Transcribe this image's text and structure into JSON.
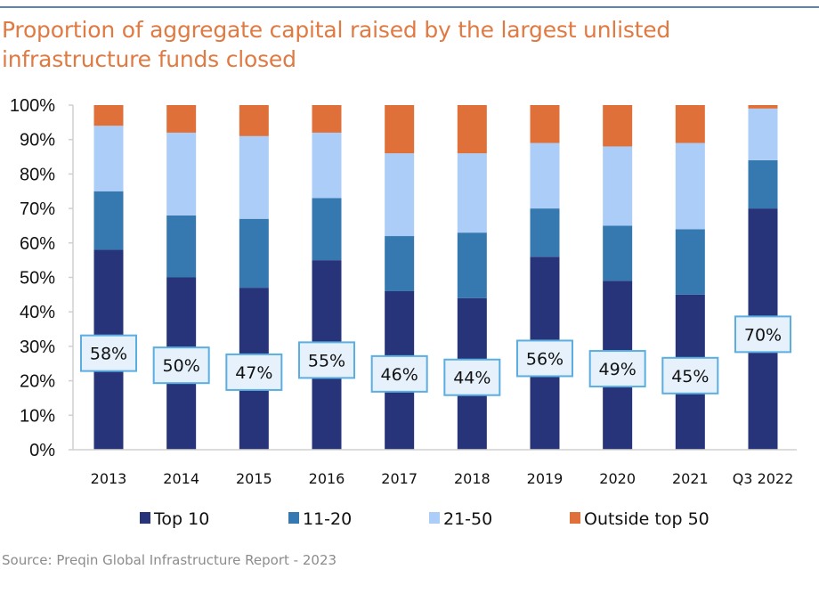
{
  "title": "Proportion of aggregate capital raised by the largest unlisted infrastructure funds closed",
  "source": "Source: Preqin Global Infrastructure Report - 2023",
  "colors": {
    "title": "#e07a43",
    "top_rule": "#5b87b0",
    "label_box_fill": "#e6f1fb",
    "label_box_border": "#5aaee0"
  },
  "chart_data": {
    "type": "bar",
    "stacked": true,
    "title": "Proportion of aggregate capital raised by the largest unlisted infrastructure funds closed",
    "xlabel": "",
    "ylabel": "",
    "ylim": [
      0,
      100
    ],
    "yticks": [
      0,
      10,
      20,
      30,
      40,
      50,
      60,
      70,
      80,
      90,
      100
    ],
    "ytick_labels": [
      "0%",
      "10%",
      "20%",
      "30%",
      "40%",
      "50%",
      "60%",
      "70%",
      "80%",
      "90%",
      "100%"
    ],
    "grid": false,
    "legend_position": "bottom",
    "categories": [
      "2013",
      "2014",
      "2015",
      "2016",
      "2017",
      "2018",
      "2019",
      "2020",
      "2021",
      "Q3 2022"
    ],
    "series": [
      {
        "name": "Top 10",
        "color": "#27347a",
        "values": [
          58,
          50,
          47,
          55,
          46,
          44,
          56,
          49,
          45,
          70
        ]
      },
      {
        "name": "11-20",
        "color": "#3679b0",
        "values": [
          17,
          18,
          20,
          18,
          16,
          19,
          14,
          16,
          19,
          14
        ]
      },
      {
        "name": "21-50",
        "color": "#abcdf7",
        "values": [
          19,
          24,
          24,
          19,
          24,
          23,
          19,
          23,
          25,
          15
        ]
      },
      {
        "name": "Outside top 50",
        "color": "#e0703a",
        "values": [
          6,
          8,
          9,
          8,
          14,
          14,
          11,
          12,
          11,
          1
        ]
      }
    ],
    "data_labels": {
      "series": "Top 10",
      "texts": [
        "58%",
        "50%",
        "47%",
        "55%",
        "46%",
        "44%",
        "56%",
        "49%",
        "45%",
        "70%"
      ],
      "label_y_values": [
        28,
        24.5,
        22.5,
        26,
        22,
        21,
        26.5,
        23.5,
        21.5,
        33.5
      ]
    }
  }
}
